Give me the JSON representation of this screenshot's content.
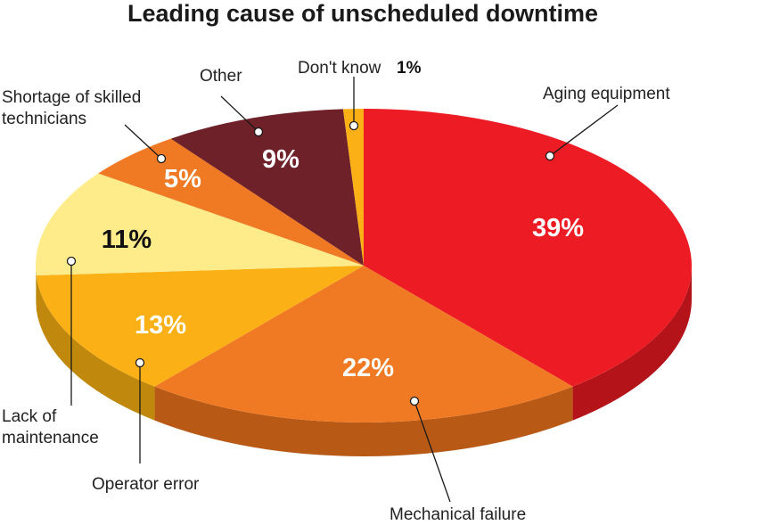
{
  "chart_data": {
    "type": "pie",
    "title": "Leading cause of unscheduled downtime",
    "unit": "%",
    "slices": [
      {
        "label": "Aging equipment",
        "value": 39,
        "display": "39%",
        "color": "#ed1c24",
        "side": "#b5131a",
        "text_color": "#ffffff"
      },
      {
        "label": "Mechanical failure",
        "value": 22,
        "display": "22%",
        "color": "#f07a24",
        "side": "#b85a16",
        "text_color": "#ffffff"
      },
      {
        "label": "Operator error",
        "value": 13,
        "display": "13%",
        "color": "#fbb116",
        "side": "#c0890e",
        "text_color": "#ffffff"
      },
      {
        "label": "Lack of maintenance",
        "value": 11,
        "display": "11%",
        "color": "#feeb8a",
        "side": "#c9b45e",
        "text_color": "#111111"
      },
      {
        "label": "Shortage of skilled technicians",
        "value": 5,
        "display": "5%",
        "color": "#f07a24",
        "side": "#b85a16",
        "text_color": "#ffffff"
      },
      {
        "label": "Other",
        "value": 9,
        "display": "9%",
        "color": "#6e2128",
        "side": "#4a1519",
        "text_color": "#ffffff"
      },
      {
        "label": "Don't know",
        "value": 1,
        "display": "1%",
        "color": "#fbb116",
        "side": "#c0890e",
        "text_color": "#111111"
      }
    ]
  }
}
